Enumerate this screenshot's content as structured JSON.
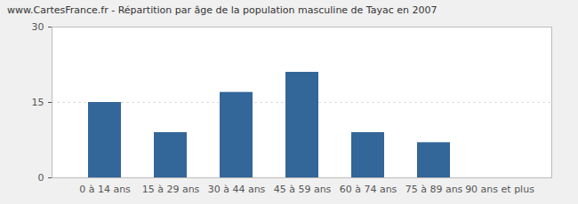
{
  "chart_data": {
    "type": "bar",
    "title": "www.CartesFrance.fr - Répartition par âge de la population masculine de Tayac en 2007",
    "categories": [
      "0 à 14 ans",
      "15 à 29 ans",
      "30 à 44 ans",
      "45 à 59 ans",
      "60 à 74 ans",
      "75 à 89 ans",
      "90 ans et plus"
    ],
    "values": [
      15,
      9,
      17,
      21,
      9,
      7,
      0
    ],
    "color": "#336699",
    "ylim": [
      0,
      30
    ],
    "yticks": [
      0,
      15,
      30
    ],
    "grid": true
  }
}
